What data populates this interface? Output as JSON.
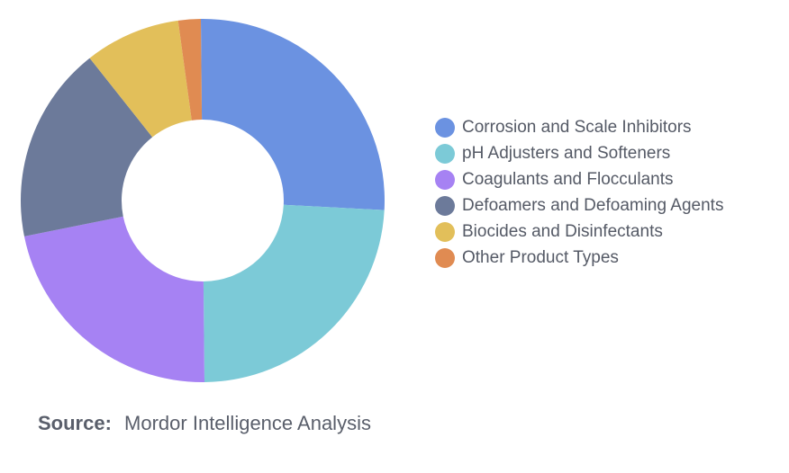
{
  "chart_data": {
    "type": "pie",
    "title": "",
    "categories": [
      "Corrosion and Scale Inhibitors",
      "pH Adjusters and Softeners",
      "Coagulants and Flocculants",
      "Defoamers and Defoaming Agents",
      "Biocides and Disinfectants",
      "Other Product Types"
    ],
    "values": [
      26,
      24,
      22,
      17.5,
      8.5,
      2
    ],
    "colors": [
      "#6b92e1",
      "#7ccad7",
      "#a682f3",
      "#6c7a9a",
      "#e2bf5a",
      "#e08b52"
    ],
    "hole": "donut",
    "legend_position": "right"
  },
  "source": {
    "label": "Source:",
    "text": "Mordor Intelligence Analysis"
  }
}
